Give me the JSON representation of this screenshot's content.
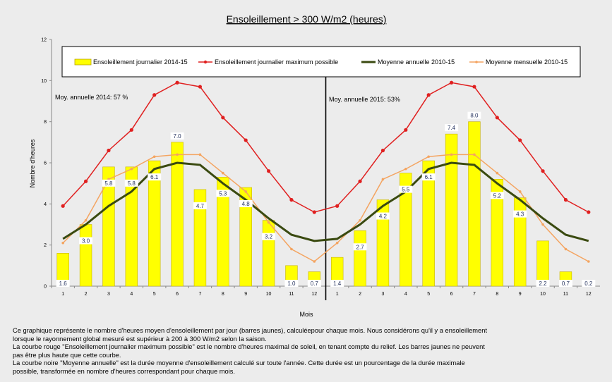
{
  "chart_data": {
    "type": "bar",
    "title": "Ensoleillement  > 300 W/m2 (heures)",
    "xlabel": "Mois",
    "ylabel": "Nombre d'heures",
    "ylim": [
      0,
      12
    ],
    "yticks": [
      "0",
      "2",
      "4",
      "6",
      "8",
      "10",
      "12"
    ],
    "grid": false,
    "legend_position": "top",
    "categories": [
      "1",
      "2",
      "3",
      "4",
      "5",
      "6",
      "7",
      "8",
      "9",
      "10",
      "11",
      "12",
      "1",
      "2",
      "3",
      "4",
      "5",
      "6",
      "7",
      "8",
      "9",
      "10",
      "11",
      "12"
    ],
    "series": [
      {
        "name": "Ensoleillement journalier 2014-15",
        "type": "bar",
        "color": "#ffff00",
        "values": [
          1.6,
          3.0,
          5.8,
          5.8,
          6.1,
          7.0,
          4.7,
          5.3,
          4.8,
          3.2,
          1.0,
          0.7,
          1.4,
          2.7,
          4.2,
          5.5,
          6.1,
          7.4,
          8.0,
          5.2,
          4.3,
          2.2,
          0.7,
          0.2
        ],
        "labels": [
          "1.6",
          "3.0",
          "5.8",
          "5.8",
          "6.1",
          "7.0",
          "4.7",
          "5.3",
          "4.8",
          "3.2",
          "1.0",
          "0.7",
          "1.4",
          "2.7",
          "4.2",
          "5.5",
          "6.1",
          "7.4",
          "8.0",
          "5.2",
          "4.3",
          "2.2",
          "0.7",
          "0.2"
        ]
      },
      {
        "name": "Ensoleillement journalier maximum possible",
        "type": "line",
        "color": "#e02020",
        "values": [
          3.9,
          5.1,
          6.6,
          7.6,
          9.3,
          9.9,
          9.7,
          8.2,
          7.1,
          5.6,
          4.2,
          3.6,
          3.9,
          5.1,
          6.6,
          7.6,
          9.3,
          9.9,
          9.7,
          8.2,
          7.1,
          5.6,
          4.2,
          3.6
        ]
      },
      {
        "name": "Moyenne annuelle 2010-15",
        "type": "line",
        "color": "#3a4a10",
        "values": [
          2.3,
          3.0,
          3.9,
          4.6,
          5.7,
          6.0,
          5.9,
          5.0,
          4.2,
          3.3,
          2.5,
          2.2,
          2.3,
          3.0,
          3.9,
          4.6,
          5.7,
          6.0,
          5.9,
          5.0,
          4.2,
          3.3,
          2.5,
          2.2
        ]
      },
      {
        "name": "Moyenne mensuelle 2010-15",
        "type": "line",
        "color": "#f4a460",
        "values": [
          2.1,
          3.2,
          5.2,
          5.7,
          6.3,
          6.4,
          6.4,
          5.5,
          4.6,
          3.1,
          1.8,
          1.2,
          2.1,
          3.2,
          5.2,
          5.7,
          6.3,
          6.4,
          6.4,
          5.5,
          4.6,
          3.0,
          1.8,
          1.2
        ]
      }
    ],
    "annotations": [
      "Moy. annuelle 2014: 57 %",
      "Moy. annuelle 2015:  53%"
    ]
  },
  "description": {
    "lines": [
      "Ce graphique  représente le nombre d'heures moyen d'ensoleillement par jour (barres  jaunes), calculéepour chaque mois. Nous considérons qu'il y a ensoleillement",
      "lorsque le rayonnement global mesuré est supérieur à 200 à 300 W/m2 selon la saison.",
      "La courbe rouge \"Ensoleillement journalier  maximum possible\" est le  nombre d'heures maximal de soleil, en tenant compte du relief. Les barres jaunes ne peuvent",
      "pas être plus haute que cette courbe.",
      "La courbe noire \"Moyenne annuelle\"  est la durée moyenne d'ensoleillement  calculé sur toute l'année. Cette durée est un pourcentage de la durée maximale",
      "possible, transformée en nombre d'heures correspondant pour chaque mois."
    ]
  }
}
